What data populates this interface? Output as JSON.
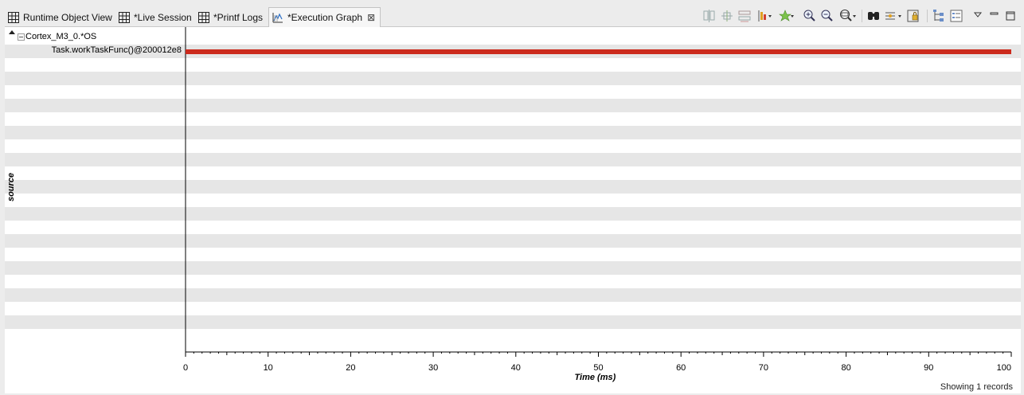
{
  "tabs": [
    {
      "label": "Runtime Object View",
      "icon": "table-icon",
      "active": false
    },
    {
      "label": "*Live Session",
      "icon": "table-icon",
      "active": false
    },
    {
      "label": "*Printf Logs",
      "icon": "table-icon",
      "active": false
    },
    {
      "label": "*Execution Graph",
      "icon": "graph-icon",
      "active": true
    }
  ],
  "toolbar": {
    "icons": [
      "align-measurement-icon",
      "snap-to-data-icon",
      "group-icon",
      "measurement-marker-icon",
      "bookmark-icon",
      "zoom-in-icon",
      "zoom-out-icon",
      "zoom-menu-icon",
      "find-icon",
      "filter-icon",
      "lock-icon",
      "tree-icon",
      "properties-icon",
      "view-menu-icon",
      "minimize-icon",
      "maximize-icon"
    ]
  },
  "tree": {
    "root_label": "Cortex_M3_0.*OS",
    "task_label": "Task.workTaskFunc()@200012e8"
  },
  "y_axis_title": "source",
  "chart_data": {
    "type": "timeline",
    "xlabel": "Time  (ms)",
    "xlim": [
      0,
      100
    ],
    "x_ticks": [
      0,
      10,
      20,
      30,
      40,
      50,
      60,
      70,
      80,
      90,
      100
    ],
    "series": [
      {
        "name": "Task.workTaskFunc()@200012e8",
        "start": 0,
        "end": 100,
        "color": "#cc2b1d"
      }
    ]
  },
  "status": {
    "records": "Showing 1 records"
  },
  "colors": {
    "bar": "#cc2b1d",
    "stripe": "#e6e6e6"
  }
}
